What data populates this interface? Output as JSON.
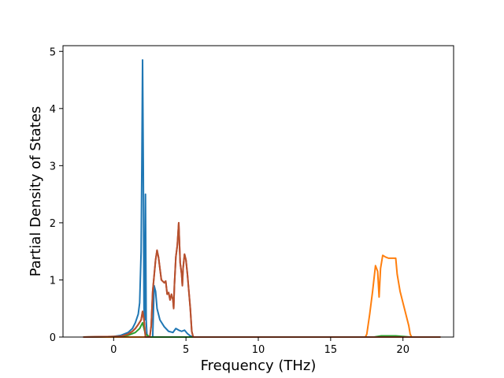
{
  "chart_data": {
    "type": "line",
    "title": "",
    "xlabel": "Frequency (THz)",
    "ylabel": "Partial Density of States",
    "xlim": [
      -3.5,
      23.5
    ],
    "ylim": [
      0,
      5.1
    ],
    "x_ticks": [
      0,
      5,
      10,
      15,
      20
    ],
    "y_ticks": [
      0,
      1,
      2,
      3,
      4,
      5
    ],
    "x_tick_labels": [
      "0",
      "5",
      "10",
      "15",
      "20"
    ],
    "y_tick_labels": [
      "0",
      "1",
      "2",
      "3",
      "4",
      "5"
    ],
    "grid": false,
    "legend": "none",
    "series": [
      {
        "color": "#1f77b4",
        "points": [
          [
            -2.1,
            0
          ],
          [
            -0.5,
            0
          ],
          [
            0,
            0.01
          ],
          [
            0.5,
            0.03
          ],
          [
            1.0,
            0.08
          ],
          [
            1.3,
            0.15
          ],
          [
            1.5,
            0.25
          ],
          [
            1.7,
            0.4
          ],
          [
            1.8,
            0.6
          ],
          [
            1.9,
            1.5
          ],
          [
            1.95,
            3.0
          ],
          [
            2.0,
            4.85
          ],
          [
            2.05,
            3.0
          ],
          [
            2.1,
            0.5
          ],
          [
            2.15,
            0.3
          ],
          [
            2.2,
            2.5
          ],
          [
            2.25,
            0.3
          ],
          [
            2.3,
            0.05
          ],
          [
            2.4,
            0.01
          ],
          [
            2.5,
            0.0
          ],
          [
            2.7,
            0.0
          ],
          [
            2.8,
            0.9
          ],
          [
            2.9,
            0.8
          ],
          [
            3.0,
            0.5
          ],
          [
            3.2,
            0.3
          ],
          [
            3.5,
            0.18
          ],
          [
            3.8,
            0.1
          ],
          [
            4.1,
            0.08
          ],
          [
            4.3,
            0.15
          ],
          [
            4.5,
            0.12
          ],
          [
            4.7,
            0.1
          ],
          [
            4.9,
            0.12
          ],
          [
            5.1,
            0.06
          ],
          [
            5.3,
            0.02
          ],
          [
            5.5,
            0.0
          ],
          [
            22.6,
            0
          ]
        ]
      },
      {
        "color": "#ff7f0e",
        "points": [
          [
            -2.1,
            0
          ],
          [
            17.4,
            0
          ],
          [
            17.5,
            0.05
          ],
          [
            17.7,
            0.4
          ],
          [
            17.9,
            0.8
          ],
          [
            18.1,
            1.25
          ],
          [
            18.25,
            1.15
          ],
          [
            18.35,
            0.7
          ],
          [
            18.45,
            1.2
          ],
          [
            18.6,
            1.43
          ],
          [
            18.8,
            1.4
          ],
          [
            19.0,
            1.38
          ],
          [
            19.3,
            1.38
          ],
          [
            19.5,
            1.38
          ],
          [
            19.6,
            1.1
          ],
          [
            19.8,
            0.8
          ],
          [
            20.0,
            0.6
          ],
          [
            20.2,
            0.4
          ],
          [
            20.4,
            0.2
          ],
          [
            20.5,
            0.05
          ],
          [
            20.6,
            0.0
          ],
          [
            22.6,
            0
          ]
        ]
      },
      {
        "color": "#2ca02c",
        "points": [
          [
            -2.1,
            0
          ],
          [
            0.5,
            0.01
          ],
          [
            1.0,
            0.03
          ],
          [
            1.5,
            0.08
          ],
          [
            1.8,
            0.15
          ],
          [
            2.0,
            0.25
          ],
          [
            2.2,
            0.05
          ],
          [
            2.5,
            0.0
          ],
          [
            3.0,
            0.0
          ],
          [
            18.0,
            0.0
          ],
          [
            18.5,
            0.02
          ],
          [
            19.0,
            0.02
          ],
          [
            19.5,
            0.02
          ],
          [
            20.0,
            0.01
          ],
          [
            20.5,
            0.0
          ],
          [
            22.6,
            0
          ]
        ]
      },
      {
        "color": "#d62728",
        "points": [
          [
            -2.1,
            0
          ],
          [
            0.5,
            0.01
          ],
          [
            1.0,
            0.05
          ],
          [
            1.3,
            0.1
          ],
          [
            1.5,
            0.15
          ],
          [
            1.7,
            0.22
          ],
          [
            1.9,
            0.3
          ],
          [
            2.0,
            0.45
          ],
          [
            2.1,
            0.3
          ],
          [
            2.2,
            0.0
          ],
          [
            2.5,
            0.0
          ],
          [
            2.6,
            0.2
          ],
          [
            2.7,
            0.8
          ],
          [
            2.9,
            1.35
          ],
          [
            3.0,
            1.52
          ],
          [
            3.1,
            1.4
          ],
          [
            3.2,
            1.2
          ],
          [
            3.3,
            1.0
          ],
          [
            3.5,
            0.95
          ],
          [
            3.6,
            0.98
          ],
          [
            3.7,
            0.75
          ],
          [
            3.8,
            0.78
          ],
          [
            3.9,
            0.65
          ],
          [
            4.0,
            0.75
          ],
          [
            4.1,
            0.65
          ],
          [
            4.15,
            0.5
          ],
          [
            4.2,
            0.9
          ],
          [
            4.3,
            1.4
          ],
          [
            4.4,
            1.6
          ],
          [
            4.5,
            2.0
          ],
          [
            4.6,
            1.3
          ],
          [
            4.7,
            1.1
          ],
          [
            4.75,
            0.9
          ],
          [
            4.8,
            1.2
          ],
          [
            4.9,
            1.45
          ],
          [
            5.0,
            1.35
          ],
          [
            5.1,
            1.1
          ],
          [
            5.2,
            0.8
          ],
          [
            5.3,
            0.5
          ],
          [
            5.4,
            0.1
          ],
          [
            5.5,
            0.0
          ],
          [
            22.6,
            0
          ]
        ]
      },
      {
        "color": "#b5522e",
        "points": [
          [
            -2.1,
            0
          ],
          [
            0.5,
            0.01
          ],
          [
            1.0,
            0.05
          ],
          [
            1.3,
            0.1
          ],
          [
            1.5,
            0.15
          ],
          [
            1.7,
            0.22
          ],
          [
            1.9,
            0.3
          ],
          [
            2.0,
            0.45
          ],
          [
            2.1,
            0.3
          ],
          [
            2.2,
            0.0
          ],
          [
            2.5,
            0.0
          ],
          [
            2.6,
            0.2
          ],
          [
            2.7,
            0.8
          ],
          [
            2.9,
            1.35
          ],
          [
            3.0,
            1.52
          ],
          [
            3.1,
            1.4
          ],
          [
            3.2,
            1.2
          ],
          [
            3.3,
            1.0
          ],
          [
            3.5,
            0.95
          ],
          [
            3.6,
            0.98
          ],
          [
            3.7,
            0.75
          ],
          [
            3.8,
            0.78
          ],
          [
            3.9,
            0.65
          ],
          [
            4.0,
            0.75
          ],
          [
            4.1,
            0.65
          ],
          [
            4.15,
            0.5
          ],
          [
            4.2,
            0.9
          ],
          [
            4.3,
            1.4
          ],
          [
            4.4,
            1.6
          ],
          [
            4.5,
            2.0
          ],
          [
            4.6,
            1.3
          ],
          [
            4.7,
            1.1
          ],
          [
            4.75,
            0.9
          ],
          [
            4.8,
            1.2
          ],
          [
            4.9,
            1.45
          ],
          [
            5.0,
            1.35
          ],
          [
            5.1,
            1.1
          ],
          [
            5.2,
            0.8
          ],
          [
            5.3,
            0.5
          ],
          [
            5.4,
            0.1
          ],
          [
            5.5,
            0.0
          ],
          [
            22.6,
            0
          ]
        ]
      }
    ]
  }
}
